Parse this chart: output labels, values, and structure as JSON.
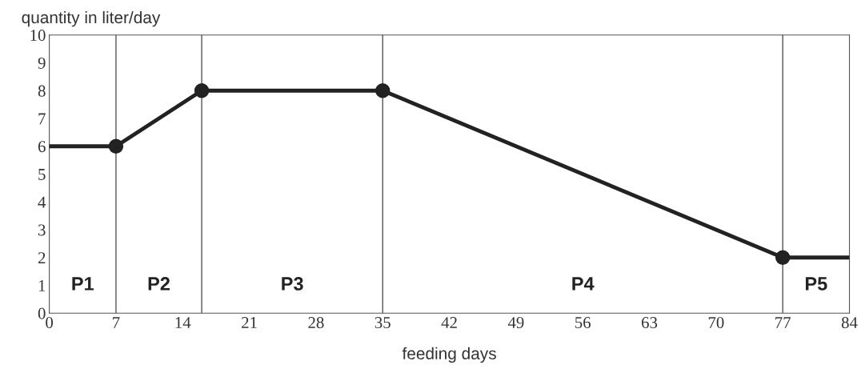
{
  "chart_data": {
    "type": "line",
    "xlabel": "feeding days",
    "ylabel": "quantity in liter/day",
    "xlim": [
      0,
      84
    ],
    "ylim": [
      0,
      10
    ],
    "xticks": [
      0,
      7,
      14,
      21,
      28,
      35,
      42,
      49,
      56,
      63,
      70,
      77,
      84
    ],
    "yticks": [
      0,
      1,
      2,
      3,
      4,
      5,
      6,
      7,
      8,
      9,
      10
    ],
    "grid": false,
    "legend": false,
    "series": [
      {
        "color": "#222222",
        "x": [
          0,
          7,
          16,
          35,
          77,
          84
        ],
        "values": [
          6,
          6,
          8,
          8,
          2,
          2
        ],
        "marker": "none"
      },
      {
        "type": "scatter",
        "color": "#222222",
        "x": [
          7,
          16,
          35,
          77
        ],
        "values": [
          6,
          8,
          8,
          2
        ],
        "marker": "circle"
      }
    ],
    "ref_lines": [
      {
        "axis": "x",
        "value": 7,
        "color": "#555555"
      },
      {
        "axis": "x",
        "value": 16,
        "color": "#555555"
      },
      {
        "axis": "x",
        "value": 35,
        "color": "#555555"
      },
      {
        "axis": "x",
        "value": 77,
        "color": "#555555"
      }
    ],
    "annotations": [
      "P1",
      "P2",
      "P3",
      "P4",
      "P5"
    ]
  }
}
